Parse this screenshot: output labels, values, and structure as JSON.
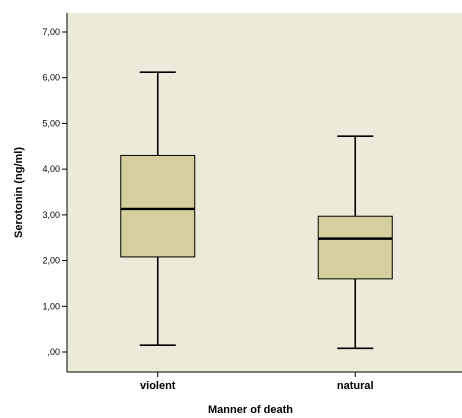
{
  "chart_data": {
    "type": "boxplot",
    "xlabel": "Manner of death",
    "ylabel": "Serotonin (ng/ml)",
    "ylim": [
      0,
      7
    ],
    "yticks": [
      0,
      1,
      2,
      3,
      4,
      5,
      6,
      7
    ],
    "ytick_labels": [
      ",00",
      "1,00",
      "2,00",
      "3,00",
      "4,00",
      "5,00",
      "6,00",
      "7,00"
    ],
    "categories": [
      "violent",
      "natural"
    ],
    "boxes": [
      {
        "category": "violent",
        "min": 0.15,
        "q1": 2.08,
        "median": 3.13,
        "q3": 4.3,
        "max": 6.12
      },
      {
        "category": "natural",
        "min": 0.08,
        "q1": 1.6,
        "median": 2.48,
        "q3": 2.97,
        "max": 4.72
      }
    ],
    "colors": {
      "plot_background": "#ecebd9",
      "box_fill": "#d4cf9c",
      "line": "#000000"
    }
  }
}
